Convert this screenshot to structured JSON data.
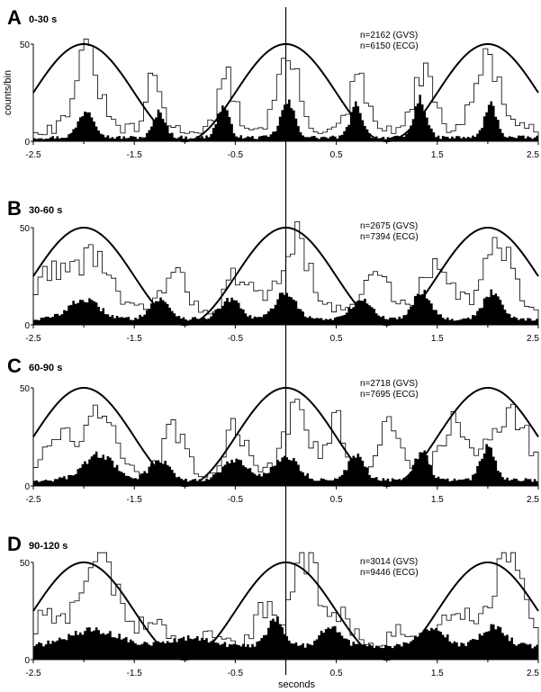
{
  "chart_data": {
    "type": "histogram-overlay",
    "xlabel": "seconds",
    "ylabel": "counts/bin",
    "xlim": [
      -2.5,
      2.5
    ],
    "x_ticks": [
      "-2.5",
      "-1.5",
      "-0.5",
      "0.5",
      "1.5",
      "2.5"
    ],
    "grid": false,
    "sine_period_s": 2.0,
    "sine_peak_value": 50,
    "panels": [
      {
        "letter": "A",
        "time_label": "0-30 s",
        "n_gvs": "n=2162 (GVS)",
        "n_ecg": "n=6150 (ECG)",
        "ylim": [
          0,
          50
        ],
        "y_ticks": [
          "50",
          "0"
        ],
        "sine_peaks_x": [
          -2.0,
          0.0,
          2.0
        ],
        "gvs_peaks": [
          {
            "x": -1.97,
            "h": 38,
            "w": 0.12
          },
          {
            "x": -1.3,
            "h": 27,
            "w": 0.07
          },
          {
            "x": -0.58,
            "h": 26,
            "w": 0.08
          },
          {
            "x": 0.02,
            "h": 38,
            "w": 0.1
          },
          {
            "x": 0.72,
            "h": 26,
            "w": 0.08
          },
          {
            "x": 1.37,
            "h": 30,
            "w": 0.09
          },
          {
            "x": 2.0,
            "h": 36,
            "w": 0.12
          }
        ],
        "gvs_base": 6,
        "ecg_peaks": [
          {
            "x": -1.97,
            "h": 14,
            "w": 0.08
          },
          {
            "x": -1.25,
            "h": 13,
            "w": 0.06
          },
          {
            "x": -0.62,
            "h": 16,
            "w": 0.06
          },
          {
            "x": 0.02,
            "h": 18,
            "w": 0.07
          },
          {
            "x": 0.7,
            "h": 17,
            "w": 0.06
          },
          {
            "x": 1.33,
            "h": 20,
            "w": 0.06
          },
          {
            "x": 2.03,
            "h": 17,
            "w": 0.06
          }
        ],
        "ecg_base": 2
      },
      {
        "letter": "B",
        "time_label": "30-60 s",
        "n_gvs": "n=2675 (GVS)",
        "n_ecg": "n=7394 (ECG)",
        "ylim": [
          0,
          50
        ],
        "y_ticks": [
          "50",
          "0"
        ],
        "sine_peaks_x": [
          -2.0,
          0.0,
          2.0
        ],
        "gvs_peaks": [
          {
            "x": -2.3,
            "h": 22,
            "w": 0.15
          },
          {
            "x": -1.9,
            "h": 30,
            "w": 0.15
          },
          {
            "x": -1.1,
            "h": 18,
            "w": 0.12
          },
          {
            "x": -0.45,
            "h": 20,
            "w": 0.12
          },
          {
            "x": 0.1,
            "h": 38,
            "w": 0.14
          },
          {
            "x": 0.9,
            "h": 20,
            "w": 0.12
          },
          {
            "x": 1.5,
            "h": 26,
            "w": 0.14
          },
          {
            "x": 2.1,
            "h": 34,
            "w": 0.14
          }
        ],
        "gvs_base": 7,
        "ecg_peaks": [
          {
            "x": -2.0,
            "h": 10,
            "w": 0.15
          },
          {
            "x": -1.25,
            "h": 10,
            "w": 0.1
          },
          {
            "x": -0.55,
            "h": 10,
            "w": 0.1
          },
          {
            "x": 0.0,
            "h": 14,
            "w": 0.1
          },
          {
            "x": 0.75,
            "h": 10,
            "w": 0.1
          },
          {
            "x": 1.35,
            "h": 14,
            "w": 0.09
          },
          {
            "x": 2.05,
            "h": 14,
            "w": 0.09
          }
        ],
        "ecg_base": 3
      },
      {
        "letter": "C",
        "time_label": "60-90 s",
        "n_gvs": "n=2718 (GVS)",
        "n_ecg": "n=7695 (ECG)",
        "ylim": [
          0,
          50
        ],
        "y_ticks": [
          "50",
          "0"
        ],
        "sine_peaks_x": [
          -2.0,
          0.0,
          2.0
        ],
        "gvs_peaks": [
          {
            "x": -2.25,
            "h": 20,
            "w": 0.14
          },
          {
            "x": -1.85,
            "h": 32,
            "w": 0.14
          },
          {
            "x": -1.1,
            "h": 24,
            "w": 0.1
          },
          {
            "x": -0.5,
            "h": 24,
            "w": 0.1
          },
          {
            "x": 0.1,
            "h": 32,
            "w": 0.12
          },
          {
            "x": 0.5,
            "h": 26,
            "w": 0.1
          },
          {
            "x": 1.05,
            "h": 26,
            "w": 0.12
          },
          {
            "x": 1.65,
            "h": 26,
            "w": 0.12
          },
          {
            "x": 2.2,
            "h": 32,
            "w": 0.18
          }
        ],
        "gvs_base": 6,
        "ecg_peaks": [
          {
            "x": -1.85,
            "h": 13,
            "w": 0.15
          },
          {
            "x": -1.25,
            "h": 10,
            "w": 0.1
          },
          {
            "x": -0.5,
            "h": 10,
            "w": 0.12
          },
          {
            "x": 0.0,
            "h": 12,
            "w": 0.12
          },
          {
            "x": 0.7,
            "h": 13,
            "w": 0.08
          },
          {
            "x": 1.35,
            "h": 15,
            "w": 0.07
          },
          {
            "x": 2.0,
            "h": 17,
            "w": 0.07
          }
        ],
        "ecg_base": 3
      },
      {
        "letter": "D",
        "time_label": "90-120 s",
        "n_gvs": "n=3014 (GVS)",
        "n_ecg": "n=9446 (ECG)",
        "ylim": [
          0,
          50
        ],
        "y_ticks": [
          "50",
          "0"
        ],
        "sine_peaks_x": [
          -2.0,
          0.0,
          2.0
        ],
        "gvs_peaks": [
          {
            "x": -2.35,
            "h": 20,
            "w": 0.12
          },
          {
            "x": -1.85,
            "h": 50,
            "w": 0.18
          },
          {
            "x": -1.3,
            "h": 18,
            "w": 0.12
          },
          {
            "x": -0.7,
            "h": 10,
            "w": 0.12
          },
          {
            "x": -0.2,
            "h": 22,
            "w": 0.12
          },
          {
            "x": 0.2,
            "h": 50,
            "w": 0.12
          },
          {
            "x": 0.55,
            "h": 20,
            "w": 0.12
          },
          {
            "x": 1.1,
            "h": 10,
            "w": 0.12
          },
          {
            "x": 1.7,
            "h": 24,
            "w": 0.15
          },
          {
            "x": 2.2,
            "h": 52,
            "w": 0.15
          }
        ],
        "gvs_base": 4,
        "ecg_peaks": [
          {
            "x": -1.9,
            "h": 8,
            "w": 0.25
          },
          {
            "x": -0.95,
            "h": 4,
            "w": 0.2
          },
          {
            "x": -0.1,
            "h": 14,
            "w": 0.08
          },
          {
            "x": 0.45,
            "h": 10,
            "w": 0.1
          },
          {
            "x": 1.45,
            "h": 10,
            "w": 0.12
          },
          {
            "x": 2.05,
            "h": 10,
            "w": 0.12
          }
        ],
        "ecg_base": 7
      }
    ]
  }
}
